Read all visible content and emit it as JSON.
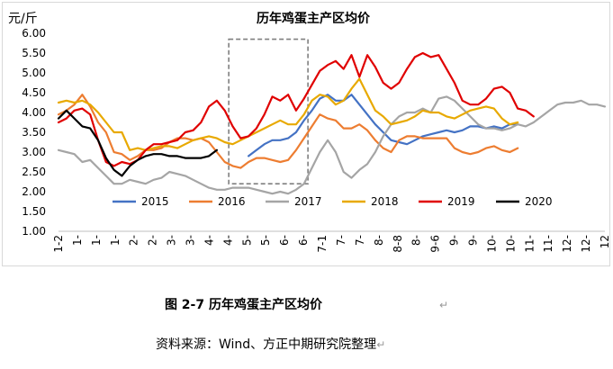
{
  "chart_data": {
    "type": "line",
    "title": "历年鸡蛋主产区均价",
    "ylabel": "元/斤",
    "ylim": [
      1.0,
      6.0
    ],
    "ytick_labels": [
      "1.00",
      "1.50",
      "2.00",
      "2.50",
      "3.00",
      "3.50",
      "4.00",
      "4.50",
      "5.00",
      "5.50",
      "6.00"
    ],
    "x_tick_labels": [
      "1-2",
      "1-",
      "1-",
      "1-",
      "2-",
      "2-",
      "3-",
      "3-",
      "4-",
      "4-",
      "5-",
      "5-",
      "6-",
      "6-",
      "7-1",
      "7-",
      "7-",
      "8-",
      "8-8",
      "8-",
      "9-6",
      "9-",
      "9-",
      "10-",
      "10-",
      "11-",
      "11-",
      "12-",
      "12-",
      "12"
    ],
    "grid": false,
    "legend_position": "bottom",
    "highlight_box": {
      "x_start": 21.5,
      "x_end": 31.5,
      "y_min": 2.2,
      "y_max": 5.85
    },
    "series": [
      {
        "name": "2015",
        "color": "#4472c4",
        "points": [
          [
            24,
            2.9
          ],
          [
            25,
            3.05
          ],
          [
            26,
            3.2
          ],
          [
            27,
            3.3
          ],
          [
            28,
            3.3
          ],
          [
            29,
            3.35
          ],
          [
            30,
            3.5
          ],
          [
            31,
            3.8
          ],
          [
            32,
            4.05
          ],
          [
            33,
            4.35
          ],
          [
            34,
            4.45
          ],
          [
            35,
            4.3
          ],
          [
            36,
            4.3
          ],
          [
            37,
            4.45
          ],
          [
            38,
            4.2
          ],
          [
            39,
            3.95
          ],
          [
            40,
            3.7
          ],
          [
            41,
            3.5
          ],
          [
            42,
            3.3
          ],
          [
            43,
            3.25
          ],
          [
            44,
            3.2
          ],
          [
            45,
            3.3
          ],
          [
            46,
            3.4
          ],
          [
            47,
            3.45
          ],
          [
            48,
            3.5
          ],
          [
            49,
            3.55
          ],
          [
            50,
            3.5
          ],
          [
            51,
            3.55
          ],
          [
            52,
            3.65
          ],
          [
            53,
            3.65
          ],
          [
            54,
            3.6
          ],
          [
            55,
            3.65
          ],
          [
            56,
            3.6
          ],
          [
            57,
            3.7
          ],
          [
            58,
            3.7
          ]
        ]
      },
      {
        "name": "2016",
        "color": "#ed7d31",
        "points": [
          [
            0,
            3.95
          ],
          [
            1,
            4.05
          ],
          [
            2,
            4.2
          ],
          [
            3,
            4.45
          ],
          [
            4,
            4.15
          ],
          [
            5,
            3.75
          ],
          [
            6,
            3.5
          ],
          [
            7,
            3.0
          ],
          [
            8,
            2.95
          ],
          [
            9,
            2.8
          ],
          [
            10,
            2.9
          ],
          [
            11,
            3.05
          ],
          [
            12,
            3.05
          ],
          [
            13,
            3.1
          ],
          [
            14,
            3.25
          ],
          [
            15,
            3.35
          ],
          [
            16,
            3.35
          ],
          [
            17,
            3.3
          ],
          [
            18,
            3.35
          ],
          [
            19,
            3.25
          ],
          [
            20,
            3.0
          ],
          [
            21,
            2.75
          ],
          [
            22,
            2.65
          ],
          [
            23,
            2.6
          ],
          [
            24,
            2.75
          ],
          [
            25,
            2.85
          ],
          [
            26,
            2.85
          ],
          [
            27,
            2.8
          ],
          [
            28,
            2.75
          ],
          [
            29,
            2.8
          ],
          [
            30,
            3.05
          ],
          [
            31,
            3.35
          ],
          [
            32,
            3.65
          ],
          [
            33,
            3.95
          ],
          [
            34,
            3.85
          ],
          [
            35,
            3.8
          ],
          [
            36,
            3.6
          ],
          [
            37,
            3.6
          ],
          [
            38,
            3.7
          ],
          [
            39,
            3.55
          ],
          [
            40,
            3.3
          ],
          [
            41,
            3.1
          ],
          [
            42,
            3.0
          ],
          [
            43,
            3.3
          ],
          [
            44,
            3.4
          ],
          [
            45,
            3.4
          ],
          [
            46,
            3.35
          ],
          [
            47,
            3.35
          ],
          [
            48,
            3.35
          ],
          [
            49,
            3.35
          ],
          [
            50,
            3.1
          ],
          [
            51,
            3.0
          ],
          [
            52,
            2.95
          ],
          [
            53,
            3.0
          ],
          [
            54,
            3.1
          ],
          [
            55,
            3.15
          ],
          [
            56,
            3.05
          ],
          [
            57,
            3.0
          ],
          [
            58,
            3.1
          ]
        ]
      },
      {
        "name": "2017",
        "color": "#a5a5a5",
        "points": [
          [
            0,
            3.05
          ],
          [
            1,
            3.0
          ],
          [
            2,
            2.95
          ],
          [
            3,
            2.75
          ],
          [
            4,
            2.8
          ],
          [
            5,
            2.6
          ],
          [
            6,
            2.4
          ],
          [
            7,
            2.2
          ],
          [
            8,
            2.2
          ],
          [
            9,
            2.3
          ],
          [
            10,
            2.25
          ],
          [
            11,
            2.2
          ],
          [
            12,
            2.3
          ],
          [
            13,
            2.35
          ],
          [
            14,
            2.5
          ],
          [
            15,
            2.45
          ],
          [
            16,
            2.4
          ],
          [
            17,
            2.3
          ],
          [
            18,
            2.2
          ],
          [
            19,
            2.1
          ],
          [
            20,
            2.05
          ],
          [
            21,
            2.05
          ],
          [
            22,
            2.1
          ],
          [
            23,
            2.1
          ],
          [
            24,
            2.1
          ],
          [
            25,
            2.05
          ],
          [
            26,
            2.0
          ],
          [
            27,
            1.95
          ],
          [
            28,
            2.0
          ],
          [
            29,
            1.95
          ],
          [
            30,
            2.05
          ],
          [
            31,
            2.2
          ],
          [
            32,
            2.6
          ],
          [
            33,
            3.0
          ],
          [
            34,
            3.3
          ],
          [
            35,
            3.0
          ],
          [
            36,
            2.5
          ],
          [
            37,
            2.35
          ],
          [
            38,
            2.55
          ],
          [
            39,
            2.7
          ],
          [
            40,
            3.0
          ],
          [
            41,
            3.4
          ],
          [
            42,
            3.7
          ],
          [
            43,
            3.9
          ],
          [
            44,
            4.0
          ],
          [
            45,
            4.0
          ],
          [
            46,
            4.1
          ],
          [
            47,
            4.0
          ],
          [
            48,
            4.35
          ],
          [
            49,
            4.4
          ],
          [
            50,
            4.3
          ],
          [
            51,
            4.1
          ],
          [
            52,
            3.9
          ],
          [
            53,
            3.7
          ],
          [
            54,
            3.6
          ],
          [
            55,
            3.6
          ],
          [
            56,
            3.55
          ],
          [
            57,
            3.6
          ],
          [
            58,
            3.7
          ],
          [
            59,
            3.65
          ],
          [
            60,
            3.75
          ],
          [
            61,
            3.9
          ],
          [
            62,
            4.05
          ],
          [
            63,
            4.2
          ],
          [
            64,
            4.25
          ],
          [
            65,
            4.25
          ],
          [
            66,
            4.3
          ],
          [
            67,
            4.2
          ],
          [
            68,
            4.2
          ],
          [
            69,
            4.15
          ]
        ]
      },
      {
        "name": "2018",
        "color": "#e8a900",
        "points": [
          [
            0,
            4.25
          ],
          [
            1,
            4.3
          ],
          [
            2,
            4.25
          ],
          [
            3,
            4.3
          ],
          [
            4,
            4.2
          ],
          [
            5,
            4.0
          ],
          [
            6,
            3.75
          ],
          [
            7,
            3.5
          ],
          [
            8,
            3.5
          ],
          [
            9,
            3.05
          ],
          [
            10,
            3.1
          ],
          [
            11,
            3.05
          ],
          [
            12,
            3.1
          ],
          [
            13,
            3.15
          ],
          [
            14,
            3.15
          ],
          [
            15,
            3.1
          ],
          [
            16,
            3.2
          ],
          [
            17,
            3.3
          ],
          [
            18,
            3.35
          ],
          [
            19,
            3.4
          ],
          [
            20,
            3.35
          ],
          [
            21,
            3.25
          ],
          [
            22,
            3.2
          ],
          [
            23,
            3.3
          ],
          [
            24,
            3.4
          ],
          [
            25,
            3.5
          ],
          [
            26,
            3.6
          ],
          [
            27,
            3.7
          ],
          [
            28,
            3.8
          ],
          [
            29,
            3.7
          ],
          [
            30,
            3.7
          ],
          [
            31,
            3.95
          ],
          [
            32,
            4.3
          ],
          [
            33,
            4.45
          ],
          [
            34,
            4.4
          ],
          [
            35,
            4.2
          ],
          [
            36,
            4.3
          ],
          [
            37,
            4.6
          ],
          [
            38,
            4.85
          ],
          [
            39,
            4.45
          ],
          [
            40,
            4.05
          ],
          [
            41,
            3.9
          ],
          [
            42,
            3.7
          ],
          [
            43,
            3.75
          ],
          [
            44,
            3.8
          ],
          [
            45,
            3.9
          ],
          [
            46,
            4.05
          ],
          [
            47,
            4.0
          ],
          [
            48,
            4.0
          ],
          [
            49,
            3.9
          ],
          [
            50,
            3.85
          ],
          [
            51,
            3.95
          ],
          [
            52,
            4.05
          ],
          [
            53,
            4.1
          ],
          [
            54,
            4.15
          ],
          [
            55,
            4.1
          ],
          [
            56,
            3.85
          ],
          [
            57,
            3.7
          ],
          [
            58,
            3.75
          ]
        ]
      },
      {
        "name": "2019",
        "color": "#e00000",
        "points": [
          [
            0,
            3.75
          ],
          [
            1,
            3.85
          ],
          [
            2,
            4.05
          ],
          [
            3,
            4.1
          ],
          [
            4,
            3.95
          ],
          [
            5,
            3.3
          ],
          [
            6,
            2.75
          ],
          [
            7,
            2.65
          ],
          [
            8,
            2.75
          ],
          [
            9,
            2.7
          ],
          [
            10,
            2.8
          ],
          [
            11,
            3.05
          ],
          [
            12,
            3.2
          ],
          [
            13,
            3.2
          ],
          [
            14,
            3.25
          ],
          [
            15,
            3.3
          ],
          [
            16,
            3.5
          ],
          [
            17,
            3.55
          ],
          [
            18,
            3.75
          ],
          [
            19,
            4.15
          ],
          [
            20,
            4.3
          ],
          [
            21,
            4.05
          ],
          [
            22,
            3.65
          ],
          [
            23,
            3.35
          ],
          [
            24,
            3.4
          ],
          [
            25,
            3.6
          ],
          [
            26,
            3.95
          ],
          [
            27,
            4.4
          ],
          [
            28,
            4.3
          ],
          [
            29,
            4.45
          ],
          [
            30,
            4.05
          ],
          [
            31,
            4.35
          ],
          [
            32,
            4.7
          ],
          [
            33,
            5.05
          ],
          [
            34,
            5.2
          ],
          [
            35,
            5.3
          ],
          [
            36,
            5.1
          ],
          [
            37,
            5.45
          ],
          [
            38,
            4.9
          ],
          [
            39,
            5.45
          ],
          [
            40,
            5.15
          ],
          [
            41,
            4.75
          ],
          [
            42,
            4.6
          ],
          [
            43,
            4.75
          ],
          [
            44,
            5.1
          ],
          [
            45,
            5.4
          ],
          [
            46,
            5.5
          ],
          [
            47,
            5.4
          ],
          [
            48,
            5.45
          ],
          [
            49,
            5.1
          ],
          [
            50,
            4.75
          ],
          [
            51,
            4.3
          ],
          [
            52,
            4.2
          ],
          [
            53,
            4.2
          ],
          [
            54,
            4.35
          ],
          [
            55,
            4.6
          ],
          [
            56,
            4.65
          ],
          [
            57,
            4.5
          ],
          [
            58,
            4.1
          ],
          [
            59,
            4.05
          ],
          [
            60,
            3.9
          ]
        ]
      },
      {
        "name": "2020",
        "color": "#000000",
        "points": [
          [
            0,
            3.85
          ],
          [
            1,
            4.05
          ],
          [
            2,
            3.85
          ],
          [
            3,
            3.65
          ],
          [
            4,
            3.6
          ],
          [
            5,
            3.3
          ],
          [
            6,
            2.85
          ],
          [
            7,
            2.55
          ],
          [
            8,
            2.4
          ],
          [
            9,
            2.65
          ],
          [
            10,
            2.8
          ],
          [
            11,
            2.9
          ],
          [
            12,
            2.95
          ],
          [
            13,
            2.95
          ],
          [
            14,
            2.9
          ],
          [
            15,
            2.9
          ],
          [
            16,
            2.85
          ],
          [
            17,
            2.85
          ],
          [
            18,
            2.85
          ],
          [
            19,
            2.9
          ],
          [
            20,
            3.05
          ]
        ]
      }
    ]
  },
  "figure": {
    "caption": "图 2-7  历年鸡蛋主产区均价",
    "caption_mark": "↵",
    "source": "资料来源：Wind、方正中期研究院整理",
    "source_mark": "↵"
  }
}
